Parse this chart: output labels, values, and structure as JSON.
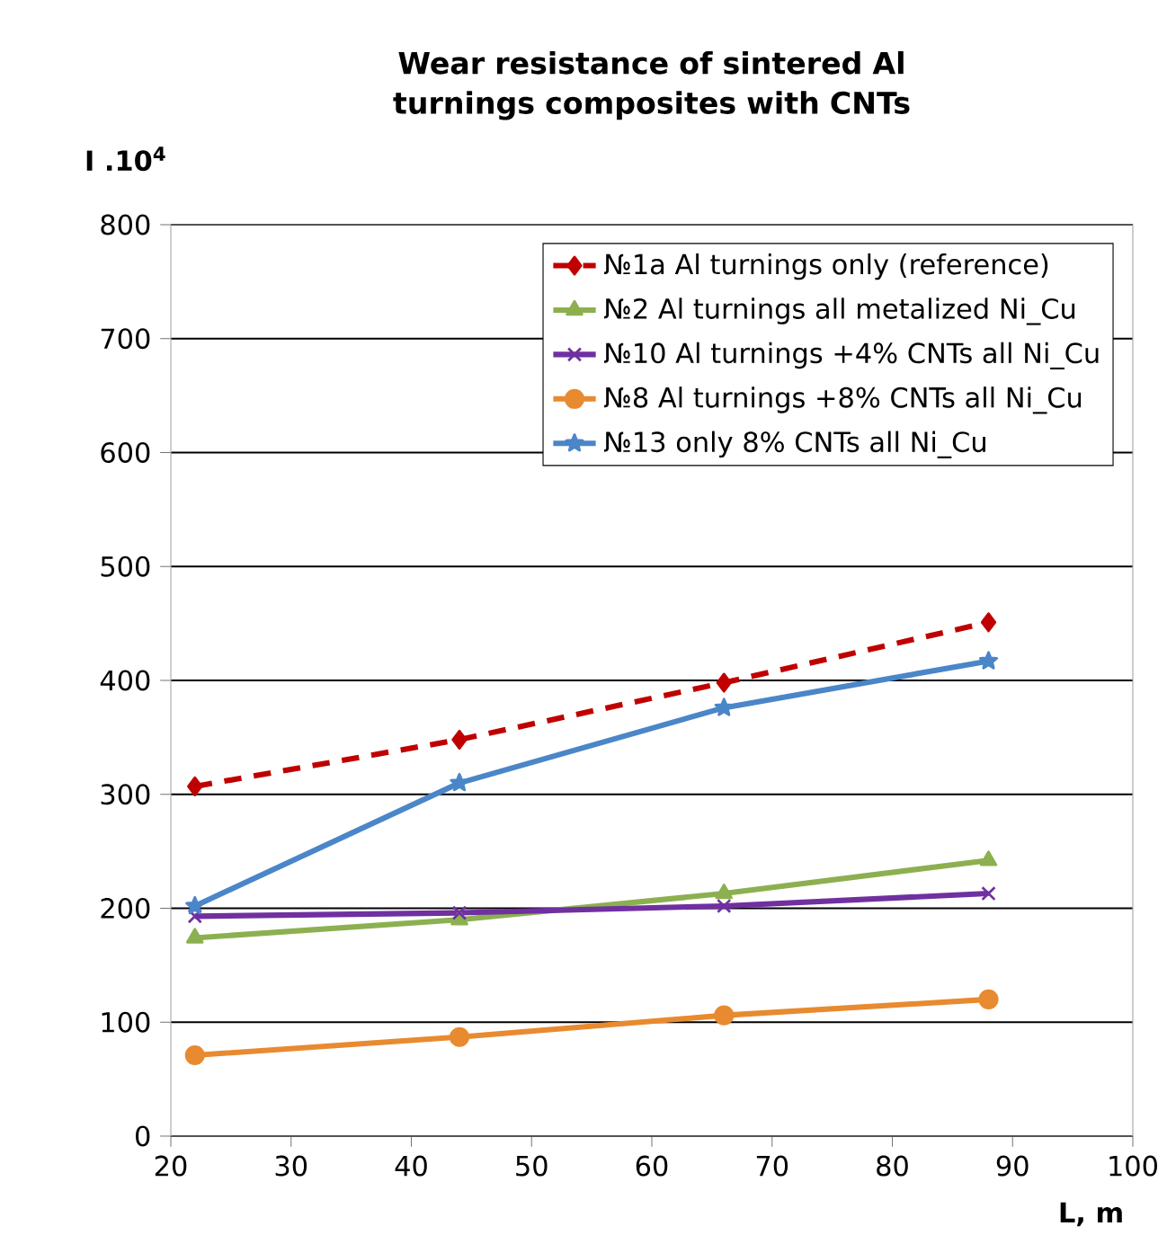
{
  "chart_data": {
    "type": "line",
    "title": "Wear resistance of  sintered Al turnings composites with CNTs",
    "ylabel": "I .10$^{4}$",
    "xlabel": "L, m",
    "x": [
      22,
      44,
      66,
      88
    ],
    "xlim": [
      20,
      100
    ],
    "xticks": [
      20,
      30,
      40,
      50,
      60,
      70,
      80,
      90,
      100
    ],
    "ylim": [
      0,
      800
    ],
    "yticks": [
      0,
      100,
      200,
      300,
      400,
      500,
      600,
      700,
      800
    ],
    "grid": "y",
    "legend": "top right",
    "series": [
      {
        "name": "№1a Al turnings only (reference)",
        "color": "#c00000",
        "values": [
          307,
          348,
          398,
          451
        ],
        "marker": "diamond",
        "line_style": "dashed"
      },
      {
        "name": "№2 Al turnings all metalized Ni_Cu",
        "color": "#8cb050",
        "values": [
          174,
          190,
          213,
          242
        ],
        "marker": "triangle",
        "line_style": "solid"
      },
      {
        "name": "№10 Al turnings +4% CNTs all Ni_Cu",
        "color": "#7030a0",
        "values": [
          193,
          196,
          202,
          213
        ],
        "marker": "cross",
        "line_style": "solid"
      },
      {
        "name": "№8 Al turnings +8% CNTs all Ni_Cu",
        "color": "#e88a30",
        "values": [
          71,
          87,
          106,
          120
        ],
        "marker": "circle",
        "line_style": "solid"
      },
      {
        "name": "№13 only 8% CNTs all Ni_Cu",
        "color": "#4a86c8",
        "values": [
          202,
          310,
          376,
          417
        ],
        "marker": "star",
        "line_style": "solid"
      }
    ]
  }
}
